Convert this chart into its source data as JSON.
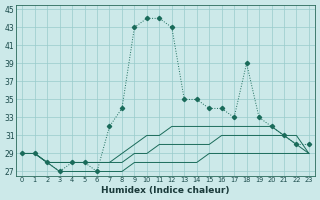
{
  "xlabel": "Humidex (Indice chaleur)",
  "bg_color": "#cce9e9",
  "line_color": "#1a6b5a",
  "grid_color": "#99cccc",
  "xmin": 0,
  "xmax": 23,
  "ymin": 27,
  "ymax": 45,
  "yticks": [
    27,
    29,
    31,
    33,
    35,
    37,
    39,
    41,
    43,
    45
  ],
  "xticks": [
    0,
    1,
    2,
    3,
    4,
    5,
    6,
    7,
    8,
    9,
    10,
    11,
    12,
    13,
    14,
    15,
    16,
    17,
    18,
    19,
    20,
    21,
    22,
    23
  ],
  "series_main": [
    29,
    29,
    28,
    27,
    28,
    28,
    27,
    32,
    34,
    43,
    44,
    44,
    43,
    35,
    35,
    34,
    34,
    33,
    39,
    33,
    32,
    31,
    30,
    30
  ],
  "series_top": [
    29,
    29,
    28,
    28,
    28,
    28,
    28,
    28,
    29,
    30,
    31,
    31,
    32,
    32,
    32,
    32,
    32,
    32,
    32,
    32,
    32,
    31,
    31,
    29
  ],
  "series_mid": [
    29,
    29,
    28,
    28,
    28,
    28,
    28,
    28,
    28,
    29,
    29,
    30,
    30,
    30,
    30,
    30,
    31,
    31,
    31,
    31,
    31,
    31,
    30,
    29
  ],
  "series_bot": [
    29,
    29,
    28,
    27,
    27,
    27,
    27,
    27,
    27,
    28,
    28,
    28,
    28,
    28,
    28,
    29,
    29,
    29,
    29,
    29,
    29,
    29,
    29,
    29
  ]
}
